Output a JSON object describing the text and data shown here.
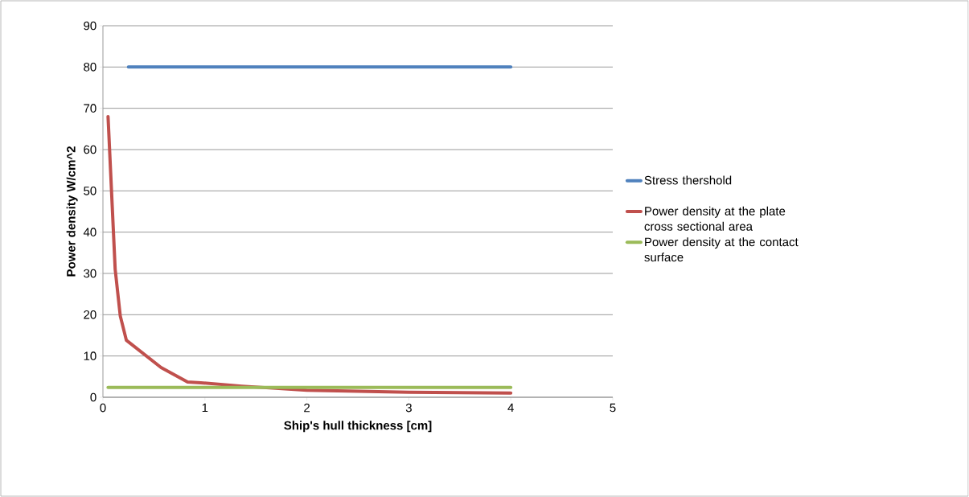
{
  "chart_data": {
    "type": "line",
    "xlabel": "Ship's hull thickness [cm]",
    "ylabel": "Power density W/cm^2",
    "xlim": [
      0,
      5
    ],
    "ylim": [
      0,
      90
    ],
    "xticks": [
      0,
      1,
      2,
      3,
      4,
      5
    ],
    "yticks": [
      0,
      10,
      20,
      30,
      40,
      50,
      60,
      70,
      80,
      90
    ],
    "grid": "y",
    "legend": "right",
    "marker": "none",
    "line_style": "solid",
    "series": [
      {
        "name": "Stress thershold",
        "color": "#4f81bd",
        "x": [
          0.25,
          4
        ],
        "values": [
          80,
          80
        ]
      },
      {
        "name": "Power density at the plate cross sectional area",
        "color": "#c0504d",
        "x": [
          0.05,
          0.12,
          0.17,
          0.23,
          0.57,
          0.83,
          0.96,
          1.36,
          2,
          3,
          4
        ],
        "values": [
          68,
          31,
          19.7,
          13.8,
          7.2,
          3.7,
          3.5,
          2.7,
          1.7,
          1.2,
          1.0
        ]
      },
      {
        "name": "Power density at the contact surface",
        "color": "#9bbb59",
        "x": [
          0.05,
          4
        ],
        "values": [
          2.4,
          2.4
        ]
      }
    ]
  }
}
